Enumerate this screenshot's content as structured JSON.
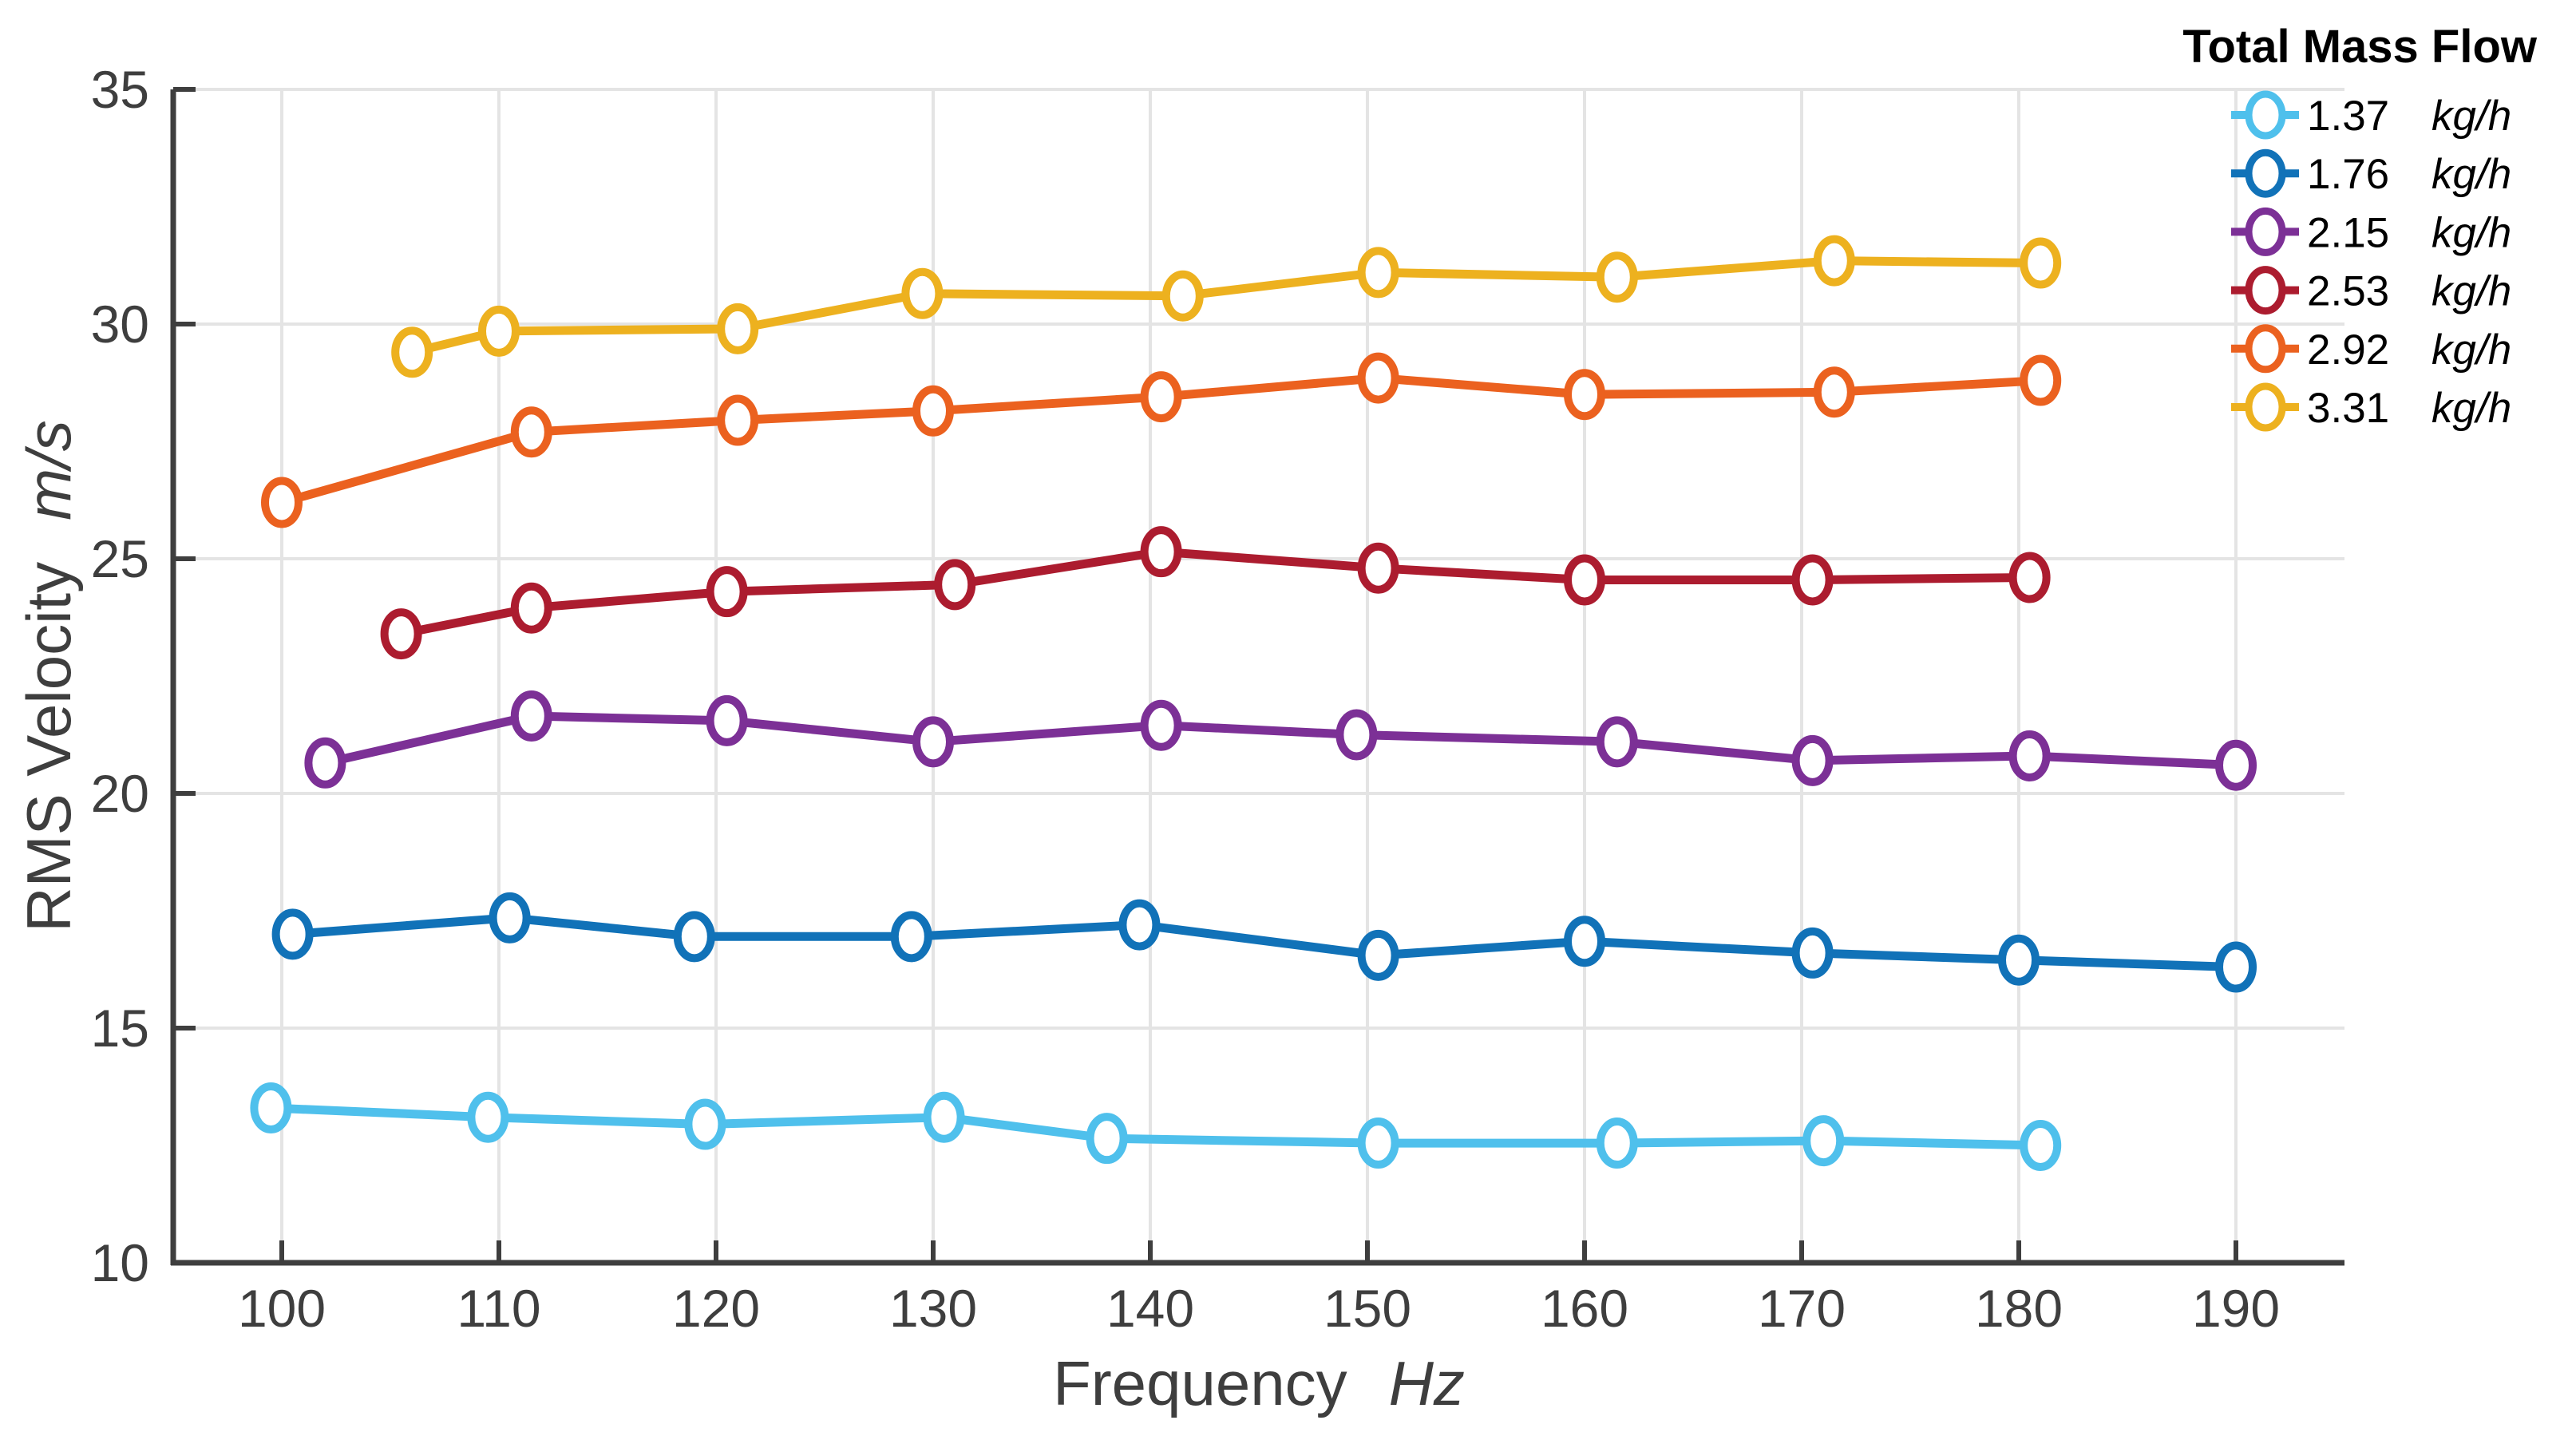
{
  "figure": {
    "xlabel": {
      "text": "Frequency",
      "unit": "Hz"
    },
    "ylabel": {
      "text": "RMS Velocity",
      "unit": "m/s"
    },
    "legend_title": "Total Mass Flow",
    "unit_label": "kg/h"
  },
  "colors": {
    "background": "#FFFFFF",
    "axis": "#3E3E3E",
    "grid": "#E4E4E4",
    "legend_text": "#000000"
  },
  "chart_data": {
    "type": "line",
    "title": "",
    "xlabel": "Frequency (Hz)",
    "ylabel": "RMS Velocity (m/s)",
    "xlim": [
      95,
      195
    ],
    "ylim": [
      10,
      35
    ],
    "xticks": [
      100,
      110,
      120,
      130,
      140,
      150,
      160,
      170,
      180,
      190
    ],
    "yticks": [
      10,
      15,
      20,
      25,
      30,
      35
    ],
    "grid": true,
    "legend_position": "outside-top-right",
    "legend_title": "Total Mass Flow",
    "series": [
      {
        "name": "1.37",
        "unit": "kg/h",
        "color": "#4FC0EC",
        "x": [
          99.5,
          109.5,
          119.5,
          130.5,
          138,
          150.5,
          161.5,
          171,
          181
        ],
        "y": [
          13.3,
          13.1,
          12.95,
          13.1,
          12.65,
          12.55,
          12.55,
          12.6,
          12.5
        ]
      },
      {
        "name": "1.76",
        "unit": "kg/h",
        "color": "#1172B8",
        "x": [
          100.5,
          110.5,
          119,
          129,
          139.5,
          150.5,
          160,
          170.5,
          180,
          190
        ],
        "y": [
          17.0,
          17.35,
          16.95,
          16.95,
          17.2,
          16.55,
          16.85,
          16.6,
          16.45,
          16.3
        ]
      },
      {
        "name": "2.15",
        "unit": "kg/h",
        "color": "#7C3096",
        "x": [
          102,
          111.5,
          120.5,
          130,
          140.5,
          149.5,
          161.5,
          170.5,
          180.5,
          190
        ],
        "y": [
          20.65,
          21.65,
          21.55,
          21.1,
          21.45,
          21.25,
          21.1,
          20.7,
          20.8,
          20.6
        ]
      },
      {
        "name": "2.53",
        "unit": "kg/h",
        "color": "#AC1C2F",
        "x": [
          105.5,
          111.5,
          120.5,
          131,
          140.5,
          150.5,
          160,
          170.5,
          180.5
        ],
        "y": [
          23.4,
          23.95,
          24.3,
          24.45,
          25.15,
          24.8,
          24.55,
          24.55,
          24.6
        ]
      },
      {
        "name": "2.92",
        "unit": "kg/h",
        "color": "#EB611F",
        "x": [
          100,
          111.5,
          121,
          130,
          140.5,
          150.5,
          160,
          171.5,
          181
        ],
        "y": [
          26.2,
          27.7,
          27.95,
          28.15,
          28.45,
          28.85,
          28.5,
          28.55,
          28.8
        ]
      },
      {
        "name": "3.31",
        "unit": "kg/h",
        "color": "#EDB11F",
        "x": [
          106,
          110,
          121,
          129.5,
          141.5,
          150.5,
          161.5,
          171.5,
          181
        ],
        "y": [
          29.4,
          29.85,
          29.9,
          30.65,
          30.6,
          31.1,
          31.0,
          31.35,
          31.3
        ]
      }
    ]
  }
}
